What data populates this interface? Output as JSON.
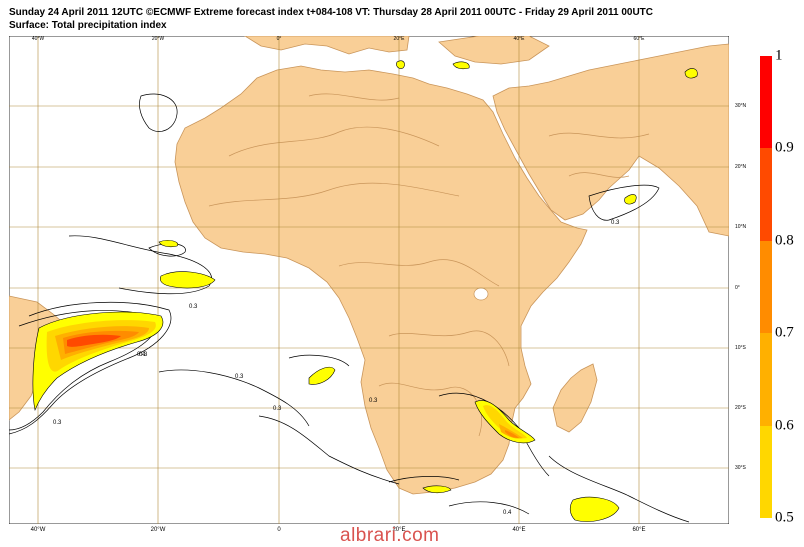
{
  "title_line1": "Sunday 24 April 2011 12UTC ©ECMWF Extreme forecast index t+084-108 VT: Thursday 28 April 2011 00UTC - Friday 29 April 2011 00UTC",
  "title_line2": "Surface: Total precipitation index",
  "lon_labels_top": [
    "40°W",
    "20°W",
    "0°",
    "20°E",
    "40°E",
    "60°E"
  ],
  "lon_labels_bottom": [
    "40°W",
    "20°W",
    "0",
    "20°E",
    "40°E",
    "60°E"
  ],
  "lat_labels": [
    "30°N",
    "20°N",
    "10°N",
    "0°",
    "10°S",
    "20°S",
    "30°S"
  ],
  "legend": {
    "levels": [
      "1",
      "0.9",
      "0.8",
      "0.7",
      "0.6",
      "0.5"
    ],
    "colors": [
      "#ff0000",
      "#ff4a00",
      "#ff8c00",
      "#ffb000",
      "#ffd700",
      "#ffff00"
    ]
  },
  "contour_labels": [
    "0.3",
    "0.3",
    "0.3",
    "0.4",
    "0.3",
    "0.3",
    "0.3",
    "0.3",
    "0.4"
  ],
  "colors": {
    "land": "#f9cf97",
    "land_contour": "#c9955a",
    "grid": "#b08a3a"
  },
  "watermark": "albrari.com"
}
